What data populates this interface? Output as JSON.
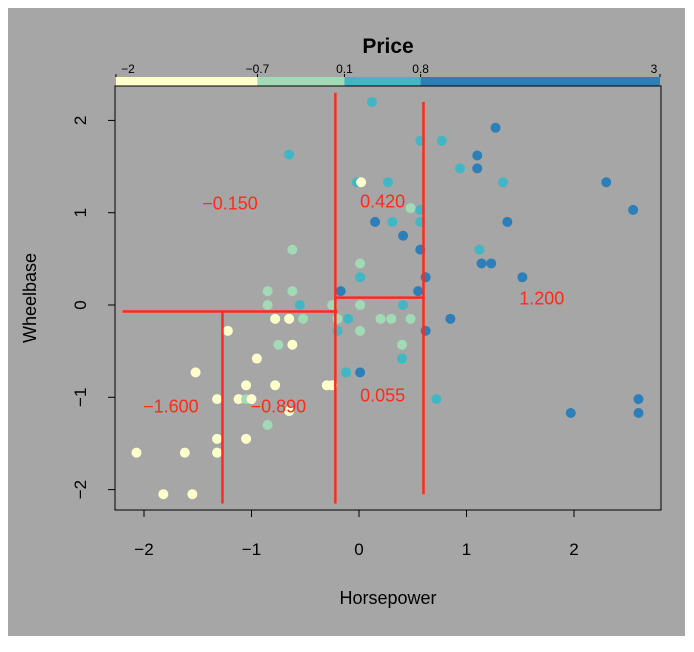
{
  "chart_data": {
    "type": "scatter",
    "title": "Price",
    "xlabel": "Horsepower",
    "ylabel": "Wheelbase",
    "xlim": [
      -2.2,
      2.8
    ],
    "ylim": [
      -2.2,
      2.45
    ],
    "xticks": [
      -2,
      -1,
      0,
      1,
      2
    ],
    "yticks": [
      -2,
      -1,
      0,
      1,
      2
    ],
    "xtick_labels": [
      "−2",
      "−1",
      "0",
      "1",
      "2"
    ],
    "ytick_labels": [
      "−2",
      "−1",
      "0",
      "1",
      "2"
    ],
    "grid": false,
    "legend": {
      "position": "top",
      "breaks": [
        -2,
        -0.7,
        0.1,
        0.8,
        3
      ],
      "labels": [
        "−2",
        "−0.7",
        "0.1",
        "0.8",
        "3"
      ],
      "colors": [
        "#FFFFCC",
        "#A1DAB4",
        "#41B6C4",
        "#2C7FB8"
      ]
    },
    "background_color": "#A6A6A6",
    "split_line_color": "#FF2A1A",
    "splits": [
      {
        "x": [
          -2.2,
          -0.2
        ],
        "y": [
          -0.07,
          -0.07
        ]
      },
      {
        "x": [
          -1.27,
          -1.27
        ],
        "y": [
          -2.15,
          -0.07
        ]
      },
      {
        "x": [
          -0.22,
          -0.22
        ],
        "y": [
          -2.15,
          2.3
        ]
      },
      {
        "x": [
          -0.22,
          0.6
        ],
        "y": [
          0.08,
          0.08
        ]
      },
      {
        "x": [
          0.6,
          0.6
        ],
        "y": [
          -2.05,
          2.2
        ]
      }
    ],
    "region_labels": [
      {
        "text": "−0.150",
        "x": -1.2,
        "y": 1.1
      },
      {
        "text": "0.420",
        "x": 0.22,
        "y": 1.12
      },
      {
        "text": "1.200",
        "x": 1.7,
        "y": 0.07
      },
      {
        "text": "−1.600",
        "x": -1.75,
        "y": -1.1
      },
      {
        "text": "−0.890",
        "x": -0.75,
        "y": -1.1
      },
      {
        "text": "0.055",
        "x": 0.22,
        "y": -0.98
      }
    ],
    "points": [
      {
        "x": 0.12,
        "y": 2.2,
        "c": 2
      },
      {
        "x": 1.27,
        "y": 1.92,
        "c": 3
      },
      {
        "x": 0.57,
        "y": 1.78,
        "c": 2
      },
      {
        "x": 0.77,
        "y": 1.78,
        "c": 2
      },
      {
        "x": -0.65,
        "y": 1.63,
        "c": 2
      },
      {
        "x": 1.1,
        "y": 1.62,
        "c": 3
      },
      {
        "x": 0.94,
        "y": 1.48,
        "c": 2
      },
      {
        "x": 1.1,
        "y": 1.48,
        "c": 3
      },
      {
        "x": -0.02,
        "y": 1.33,
        "c": 2
      },
      {
        "x": 0.02,
        "y": 1.33,
        "c": 0
      },
      {
        "x": 0.27,
        "y": 1.33,
        "c": 2
      },
      {
        "x": 1.34,
        "y": 1.33,
        "c": 2
      },
      {
        "x": 2.3,
        "y": 1.33,
        "c": 3
      },
      {
        "x": 0.48,
        "y": 1.05,
        "c": 1
      },
      {
        "x": 0.57,
        "y": 1.03,
        "c": 2
      },
      {
        "x": 2.55,
        "y": 1.03,
        "c": 3
      },
      {
        "x": 0.15,
        "y": 0.9,
        "c": 3
      },
      {
        "x": 0.31,
        "y": 0.9,
        "c": 2
      },
      {
        "x": 0.57,
        "y": 0.9,
        "c": 2
      },
      {
        "x": 1.38,
        "y": 0.9,
        "c": 3
      },
      {
        "x": 0.41,
        "y": 0.75,
        "c": 3
      },
      {
        "x": -0.62,
        "y": 0.6,
        "c": 1
      },
      {
        "x": 0.57,
        "y": 0.6,
        "c": 3
      },
      {
        "x": 1.12,
        "y": 0.6,
        "c": 2
      },
      {
        "x": 1.23,
        "y": 0.45,
        "c": 3
      },
      {
        "x": 0.01,
        "y": 0.45,
        "c": 1
      },
      {
        "x": 1.14,
        "y": 0.45,
        "c": 3
      },
      {
        "x": 0.01,
        "y": 0.3,
        "c": 2
      },
      {
        "x": 0.62,
        "y": 0.3,
        "c": 3
      },
      {
        "x": 1.52,
        "y": 0.3,
        "c": 3
      },
      {
        "x": -0.85,
        "y": 0.15,
        "c": 1
      },
      {
        "x": -0.62,
        "y": 0.15,
        "c": 1
      },
      {
        "x": -0.17,
        "y": 0.15,
        "c": 3
      },
      {
        "x": 0.55,
        "y": 0.15,
        "c": 3
      },
      {
        "x": -0.85,
        "y": 0.0,
        "c": 1
      },
      {
        "x": -0.55,
        "y": 0.0,
        "c": 2
      },
      {
        "x": -0.25,
        "y": 0.0,
        "c": 1
      },
      {
        "x": 0.01,
        "y": 0.0,
        "c": 1
      },
      {
        "x": 0.41,
        "y": 0.0,
        "c": 2
      },
      {
        "x": -0.78,
        "y": -0.15,
        "c": 0
      },
      {
        "x": -0.65,
        "y": -0.15,
        "c": 0
      },
      {
        "x": -0.52,
        "y": -0.15,
        "c": 1
      },
      {
        "x": -0.2,
        "y": -0.15,
        "c": 1
      },
      {
        "x": -0.1,
        "y": -0.15,
        "c": 2
      },
      {
        "x": 0.2,
        "y": -0.15,
        "c": 1
      },
      {
        "x": 0.3,
        "y": -0.15,
        "c": 1
      },
      {
        "x": 0.48,
        "y": -0.15,
        "c": 1
      },
      {
        "x": 0.85,
        "y": -0.15,
        "c": 3
      },
      {
        "x": -1.22,
        "y": -0.28,
        "c": 0
      },
      {
        "x": -0.2,
        "y": -0.28,
        "c": 2
      },
      {
        "x": 0.01,
        "y": -0.28,
        "c": 1
      },
      {
        "x": 0.62,
        "y": -0.28,
        "c": 3
      },
      {
        "x": -0.62,
        "y": -0.43,
        "c": 0
      },
      {
        "x": -0.75,
        "y": -0.43,
        "c": 1
      },
      {
        "x": 0.4,
        "y": -0.43,
        "c": 1
      },
      {
        "x": -0.95,
        "y": -0.58,
        "c": 0
      },
      {
        "x": 0.4,
        "y": -0.58,
        "c": 2
      },
      {
        "x": -1.52,
        "y": -0.73,
        "c": 0
      },
      {
        "x": -0.12,
        "y": -0.73,
        "c": 2
      },
      {
        "x": 0.01,
        "y": -0.73,
        "c": 3
      },
      {
        "x": -1.05,
        "y": -0.87,
        "c": 0
      },
      {
        "x": -0.78,
        "y": -0.87,
        "c": 0
      },
      {
        "x": -0.3,
        "y": -0.87,
        "c": 0
      },
      {
        "x": -0.25,
        "y": -0.87,
        "c": 0
      },
      {
        "x": -1.12,
        "y": -1.02,
        "c": 0
      },
      {
        "x": -1.05,
        "y": -1.02,
        "c": 1
      },
      {
        "x": -1.0,
        "y": -1.02,
        "c": 0
      },
      {
        "x": -1.32,
        "y": -1.02,
        "c": 0
      },
      {
        "x": 0.72,
        "y": -1.02,
        "c": 2
      },
      {
        "x": 2.6,
        "y": -1.02,
        "c": 3
      },
      {
        "x": -0.65,
        "y": -1.15,
        "c": 0
      },
      {
        "x": 1.97,
        "y": -1.17,
        "c": 3
      },
      {
        "x": 2.6,
        "y": -1.17,
        "c": 3
      },
      {
        "x": -0.85,
        "y": -1.3,
        "c": 1
      },
      {
        "x": -1.32,
        "y": -1.45,
        "c": 0
      },
      {
        "x": -1.05,
        "y": -1.45,
        "c": 0
      },
      {
        "x": -1.62,
        "y": -1.6,
        "c": 0
      },
      {
        "x": -1.32,
        "y": -1.6,
        "c": 0
      },
      {
        "x": -2.07,
        "y": -1.6,
        "c": 0
      },
      {
        "x": -1.82,
        "y": -2.05,
        "c": 0
      },
      {
        "x": -1.55,
        "y": -2.05,
        "c": 0
      }
    ]
  }
}
